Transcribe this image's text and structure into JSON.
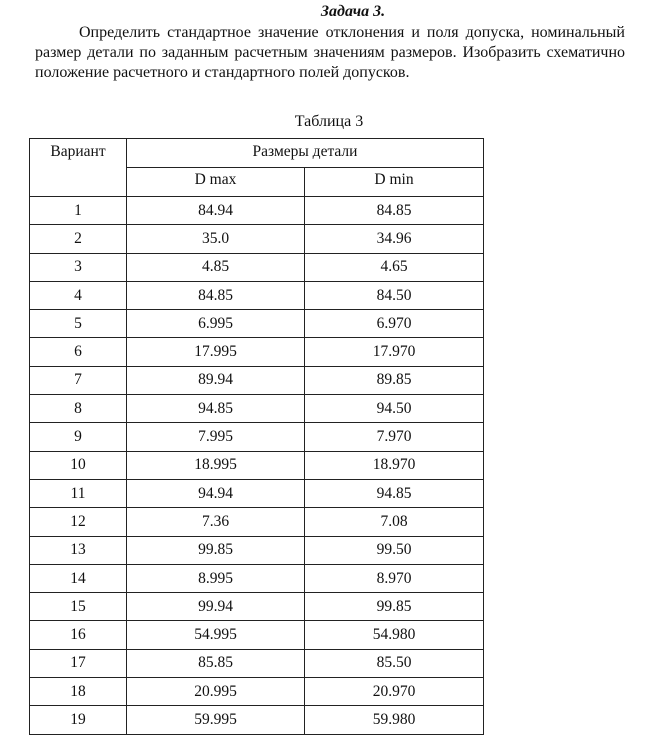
{
  "document": {
    "title": "Задача 3.",
    "paragraph": "Определить стандартное значение отклонения и поля допуска, номинальный размер детали по заданным расчетным значениям размеров. Изобразить схематично положение расчетного и стандартного полей допусков.",
    "table_caption": "Таблица 3"
  },
  "table": {
    "header_variant": "Вариант",
    "header_group": "Размеры детали",
    "header_dmax": "D max",
    "header_dmin": "D min",
    "rows": [
      [
        "1",
        "84.94",
        "84.85"
      ],
      [
        "2",
        "35.0",
        "34.96"
      ],
      [
        "3",
        "4.85",
        "4.65"
      ],
      [
        "4",
        "84.85",
        "84.50"
      ],
      [
        "5",
        "6.995",
        "6.970"
      ],
      [
        "6",
        "17.995",
        "17.970"
      ],
      [
        "7",
        "89.94",
        "89.85"
      ],
      [
        "8",
        "94.85",
        "94.50"
      ],
      [
        "9",
        "7.995",
        "7.970"
      ],
      [
        "10",
        "18.995",
        "18.970"
      ],
      [
        "11",
        "94.94",
        "94.85"
      ],
      [
        "12",
        "7.36",
        "7.08"
      ],
      [
        "13",
        "99.85",
        "99.50"
      ],
      [
        "14",
        "8.995",
        "8.970"
      ],
      [
        "15",
        "99.94",
        "99.85"
      ],
      [
        "16",
        "54.995",
        "54.980"
      ],
      [
        "17",
        "85.85",
        "85.50"
      ],
      [
        "18",
        "20.995",
        "20.970"
      ],
      [
        "19",
        "59.995",
        "59.980"
      ]
    ]
  }
}
